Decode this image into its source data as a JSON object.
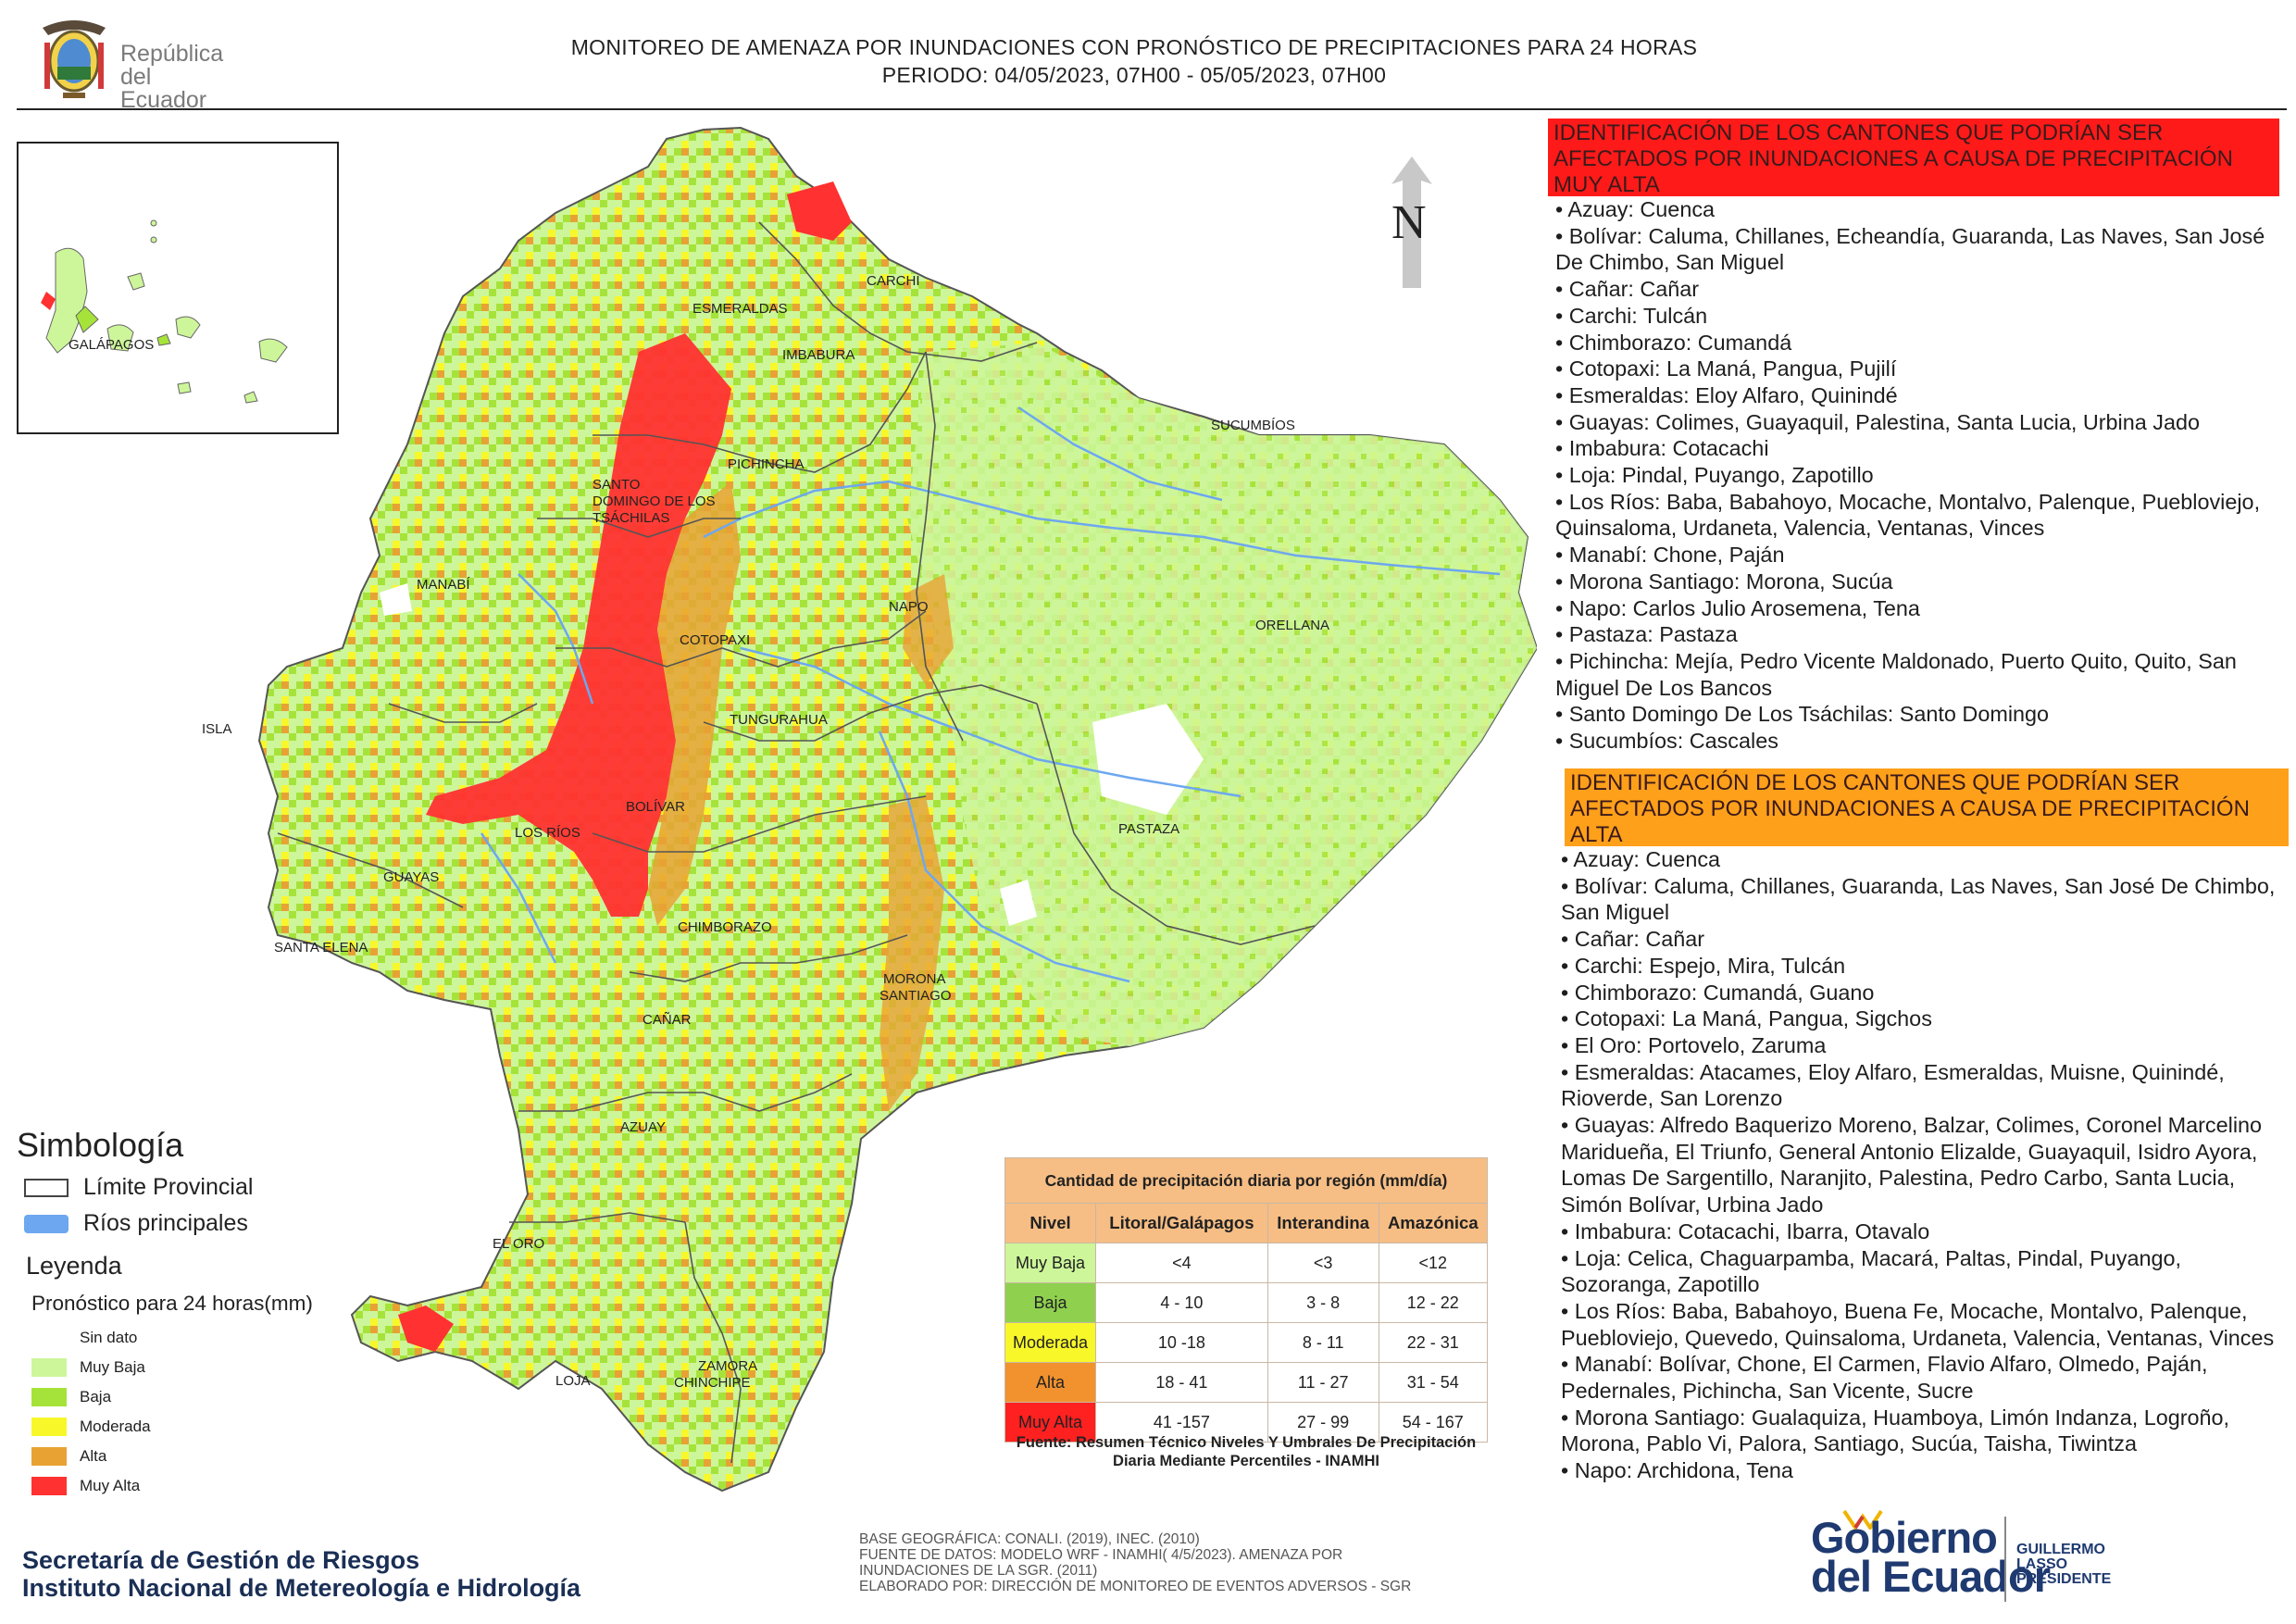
{
  "header": {
    "logo_text_line1": "República",
    "logo_text_line2": "del Ecuador",
    "title_line1": "MONITOREO DE AMENAZA POR INUNDACIONES  CON PRONÓSTICO DE  PRECIPITACIONES PARA 24 HORAS",
    "title_line2": "PERIODO: 04/05/2023, 07H00 - 05/05/2023, 07H00"
  },
  "map": {
    "north_label": "N",
    "inset_label": "GALÁPAGOS",
    "isla_label": "ISLA",
    "province_labels": [
      "CARCHI",
      "ESMERALDAS",
      "IMBABURA",
      "SUCUMBÍOS",
      "PICHINCHA",
      "SANTO",
      "DOMINGO DE LOS",
      "TSÁCHILAS",
      "MANABÍ",
      "NAPO",
      "ORELLANA",
      "COTOPAXI",
      "TUNGURAHUA",
      "BOLÍVAR",
      "LOS RÍOS",
      "PASTAZA",
      "GUAYAS",
      "SANTA ELENA",
      "CHIMBORAZO",
      "MORONA",
      "SANTIAGO",
      "CAÑAR",
      "AZUAY",
      "EL ORO",
      "LOJA",
      "ZAMORA",
      "CHINCHIPE"
    ],
    "colors": {
      "sin_dato": "#ffffff",
      "muy_baja": "#cdf69a",
      "baja": "#a6e33a",
      "moderada": "#f8f72a",
      "alta": "#e8a234",
      "muy_alta": "#ff3131",
      "rivers": "#6da7f0"
    }
  },
  "red_panel": {
    "heading": "IDENTIFICACIÓN DE LOS CANTONES QUE PODRÍAN SER AFECTADOS POR INUNDACIONES  A CAUSA DE PRECIPITACIÓN MUY ALTA",
    "items": [
      "• Azuay: Cuenca",
      "• Bolívar: Caluma, Chillanes, Echeandía, Guaranda, Las Naves, San José De Chimbo, San Miguel",
      "• Cañar: Cañar",
      "• Carchi: Tulcán",
      "• Chimborazo: Cumandá",
      "• Cotopaxi: La Maná, Pangua, Pujilí",
      "• Esmeraldas: Eloy Alfaro, Quinindé",
      "• Guayas: Colimes, Guayaquil, Palestina, Santa Lucia, Urbina Jado",
      "• Imbabura: Cotacachi",
      "• Loja: Pindal, Puyango, Zapotillo",
      "• Los Ríos: Baba, Babahoyo, Mocache, Montalvo, Palenque, Puebloviejo, Quinsaloma, Urdaneta, Valencia, Ventanas, Vinces",
      "• Manabí: Chone, Paján",
      "• Morona Santiago: Morona, Sucúa",
      "• Napo: Carlos Julio Arosemena, Tena",
      "• Pastaza: Pastaza",
      "• Pichincha: Mejía, Pedro Vicente Maldonado, Puerto Quito, Quito, San Miguel De Los Bancos",
      "• Santo Domingo De Los Tsáchilas: Santo Domingo",
      "• Sucumbíos: Cascales"
    ]
  },
  "orange_panel": {
    "heading": "IDENTIFICACIÓN DE LOS CANTONES QUE  PODRÍAN SER AFECTADOS POR INUNDACIONES  A CAUSA DE PRECIPITACIÓN ALTA",
    "items": [
      "• Azuay: Cuenca",
      "• Bolívar: Caluma, Chillanes, Guaranda, Las Naves, San José De Chimbo, San Miguel",
      "• Cañar: Cañar",
      "• Carchi: Espejo, Mira, Tulcán",
      "• Chimborazo: Cumandá, Guano",
      "• Cotopaxi: La Maná, Pangua, Sigchos",
      "• El Oro: Portovelo, Zaruma",
      "• Esmeraldas: Atacames, Eloy Alfaro, Esmeraldas, Muisne, Quinindé, Rioverde, San Lorenzo",
      "• Guayas: Alfredo Baquerizo Moreno, Balzar, Colimes, Coronel Marcelino Maridueña, El Triunfo, General Antonio Elizalde, Guayaquil, Isidro Ayora, Lomas De Sargentillo, Naranjito, Palestina, Pedro Carbo, Santa Lucia, Simón Bolívar, Urbina Jado",
      "• Imbabura: Cotacachi, Ibarra, Otavalo",
      "• Loja: Celica, Chaguarpamba, Macará, Paltas, Pindal, Puyango, Sozoranga, Zapotillo",
      "• Los Ríos: Baba, Babahoyo, Buena Fe, Mocache, Montalvo, Palenque, Puebloviejo, Quevedo, Quinsaloma, Urdaneta, Valencia, Ventanas, Vinces",
      "• Manabí: Bolívar, Chone, El Carmen, Flavio Alfaro, Olmedo, Paján, Pedernales, Pichincha, San Vicente, Sucre",
      "• Morona Santiago: Gualaquiza, Huamboya, Limón Indanza, Logroño, Morona, Pablo Vi, Palora, Santiago, Sucúa, Taisha, Tiwintza",
      "• Napo: Archidona, Tena"
    ]
  },
  "simbologia": {
    "title": "Simbología",
    "limite": "Límite Provincial",
    "rios": "Ríos principales"
  },
  "leyenda": {
    "title": "Leyenda",
    "subtitle": "Pronóstico para 24 horas(mm)",
    "items": [
      "Sin dato",
      "Muy Baja",
      "Baja",
      "Moderada",
      "Alta",
      "Muy Alta"
    ]
  },
  "table": {
    "caption": "Cantidad de precipitación diaria por región (mm/día)",
    "headers": [
      "Nivel",
      "Litoral/Galápagos",
      "Interandina",
      "Amazónica"
    ],
    "rows": [
      [
        "Muy Baja",
        "<4",
        "<3",
        "<12"
      ],
      [
        "Baja",
        "4 - 10",
        "3 - 8",
        "12 - 22"
      ],
      [
        "Moderada",
        "10 -18",
        "8 - 11",
        "22 - 31"
      ],
      [
        "Alta",
        "18 - 41",
        "11 - 27",
        "31 - 54"
      ],
      [
        "Muy Alta",
        "41 -157",
        "27 - 99",
        "54 - 167"
      ]
    ],
    "footnote": "Fuente: Resumen Técnico Niveles Y Umbrales De Precipitación Diaria Mediante Percentiles - INAMHI"
  },
  "footer": {
    "sgr_line1": "Secretaría de Gestión de Riesgos",
    "sgr_line2": "Instituto Nacional de Metereología e Hidrología",
    "base_lines": [
      "BASE GEOGRÁFICA: CONALI. (2019), INEC. (2010)",
      "FUENTE DE DATOS: MODELO WRF - INAMHI( 4/5/2023).  AMENAZA POR",
      "INUNDACIONES DE LA SGR. (2011)",
      "ELABORADO POR: DIRECCIÓN DE MONITOREO DE EVENTOS ADVERSOS - SGR"
    ],
    "gob_line1": "Gobierno",
    "gob_line2": "del Ecuador",
    "president_line1": "GUILLERMO LASSO",
    "president_line2": "PRESIDENTE"
  }
}
